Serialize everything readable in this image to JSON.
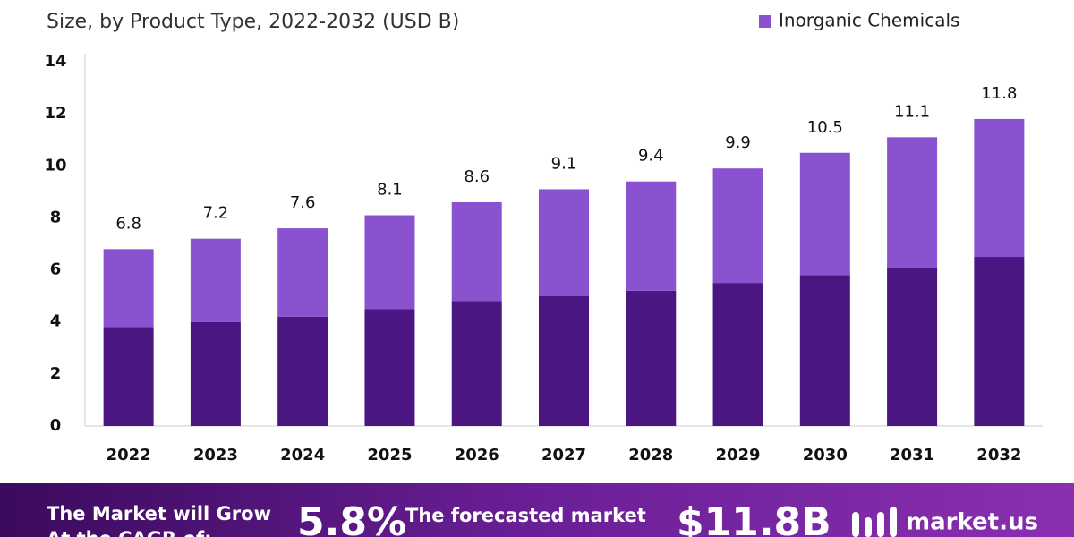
{
  "chart_data": {
    "type": "stacked_bar",
    "title": "Size, by Product Type, 2022-2032 (USD B)",
    "categories": [
      "2022",
      "2023",
      "2024",
      "2025",
      "2026",
      "2027",
      "2028",
      "2029",
      "2030",
      "2031",
      "2032"
    ],
    "series": [
      {
        "color": "#4b1681",
        "values": [
          3.8,
          4.0,
          4.2,
          4.5,
          4.8,
          5.0,
          5.2,
          5.5,
          5.8,
          6.1,
          6.5
        ]
      },
      {
        "name": "Inorganic Chemicals",
        "color": "#8b52d0",
        "values": [
          3.0,
          3.2,
          3.4,
          3.6,
          3.8,
          4.1,
          4.2,
          4.4,
          4.7,
          5.0,
          5.3
        ]
      }
    ],
    "totals": [
      6.8,
      7.2,
      7.6,
      8.1,
      8.6,
      9.1,
      9.4,
      9.9,
      10.5,
      11.1,
      11.8
    ],
    "ylim": [
      0,
      14
    ],
    "yticks": [
      0,
      2,
      4,
      6,
      8,
      10,
      12,
      14
    ],
    "grid": false
  },
  "banner": {
    "grow": "The Market will Grow",
    "cagr_label": "At the CAGR of:",
    "cagr": "5.8%",
    "forecast": "The forecasted market",
    "market_value": "$11.8B",
    "brand": "market.us"
  }
}
